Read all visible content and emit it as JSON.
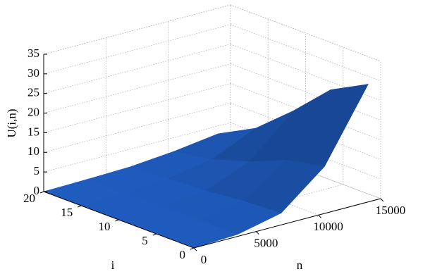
{
  "chart_data": {
    "type": "surface",
    "xlabel": "n",
    "ylabel": "i",
    "zlabel": "U(i,n)",
    "xlim": [
      0,
      15000
    ],
    "xticks": [
      0,
      5000,
      10000,
      15000
    ],
    "ylim": [
      0,
      20
    ],
    "yticks": [
      0,
      5,
      10,
      15,
      20
    ],
    "zlim": [
      0,
      35
    ],
    "zticks": [
      0,
      5,
      10,
      15,
      20,
      25,
      30,
      35
    ],
    "x": [
      0,
      3500,
      7000,
      10500,
      14000
    ],
    "y": [
      0,
      5,
      10,
      15,
      20
    ],
    "z": [
      [
        0,
        0.5,
        3,
        12,
        30
      ],
      [
        0,
        0.5,
        2.5,
        10,
        25
      ],
      [
        0,
        0.4,
        1.5,
        6,
        16
      ],
      [
        0,
        0.3,
        1,
        3,
        8
      ],
      [
        0,
        0.2,
        0.5,
        1.5,
        3
      ]
    ],
    "color": "#1f5cbf",
    "grid": true
  }
}
